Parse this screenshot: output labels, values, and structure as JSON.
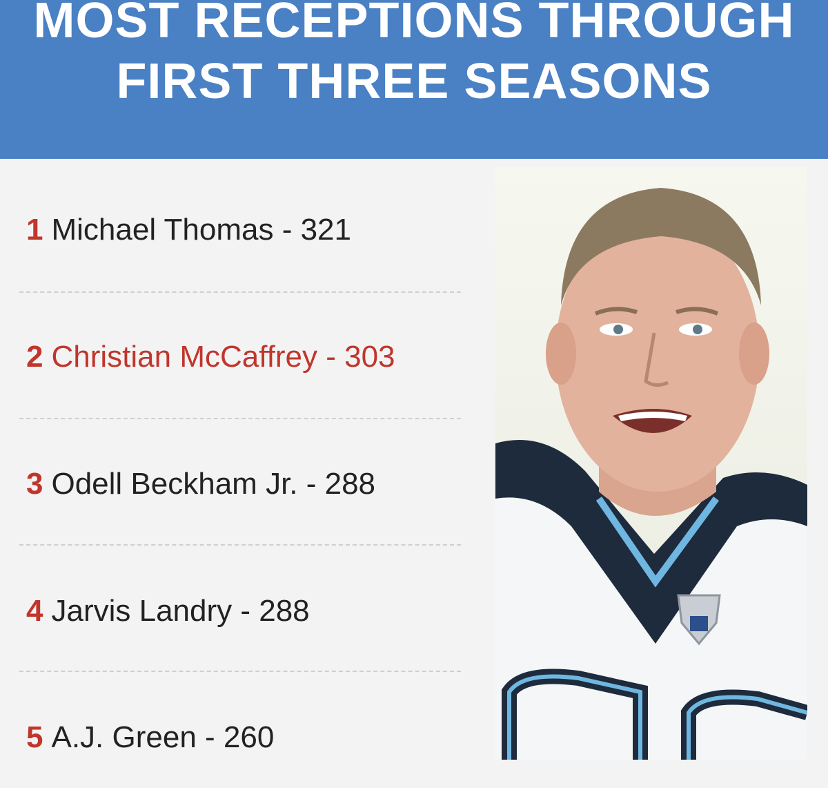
{
  "header": {
    "title_line1": "MOST RECEPTIONS THROUGH",
    "title_line2": "FIRST THREE SEASONS"
  },
  "list": {
    "items": [
      {
        "rank": "1",
        "text": "Michael Thomas - 321",
        "highlight": false
      },
      {
        "rank": "2",
        "text": "Christian McCaffrey - 303",
        "highlight": true
      },
      {
        "rank": "3",
        "text": "Odell Beckham Jr. - 288",
        "highlight": false
      },
      {
        "rank": "4",
        "text": "Jarvis Landry - 288",
        "highlight": false
      },
      {
        "rank": "5",
        "text": "A.J. Green - 260",
        "highlight": false
      }
    ]
  },
  "colors": {
    "header_bg": "#4a80c4",
    "rank_red": "#c0362c",
    "text_dark": "#222222"
  }
}
